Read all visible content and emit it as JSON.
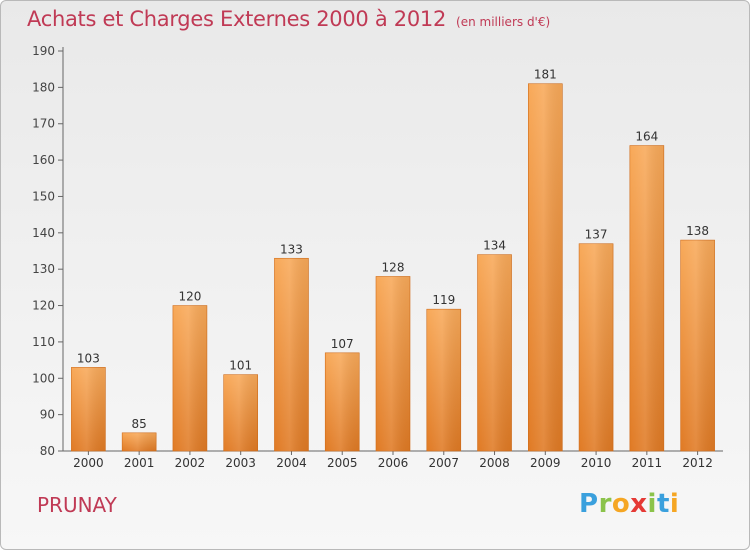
{
  "header": {
    "title": "Achats et Charges Externes 2000 à 2012",
    "unit": "(en milliers d'€)"
  },
  "footer": {
    "city": "PRUNAY"
  },
  "logo": {
    "letters": [
      "P",
      "r",
      "o",
      "x",
      "i",
      "t",
      "i"
    ],
    "colors": [
      "#3aa0dd",
      "#8bc34a",
      "#f5a623",
      "#e53935",
      "#8bc34a",
      "#3aa0dd",
      "#f5a623"
    ]
  },
  "colors": {
    "bar_light": "#f8a959",
    "bar_dark": "#e07a24",
    "text_accent": "#c03a55"
  },
  "chart_data": {
    "type": "bar",
    "title": "Achats et Charges Externes 2000 à 2012",
    "categories": [
      "2000",
      "2001",
      "2002",
      "2003",
      "2004",
      "2005",
      "2006",
      "2007",
      "2008",
      "2009",
      "2010",
      "2011",
      "2012"
    ],
    "values": [
      103,
      85,
      120,
      101,
      133,
      107,
      128,
      119,
      134,
      181,
      137,
      164,
      138
    ],
    "yticks": [
      80,
      90,
      100,
      110,
      120,
      130,
      140,
      150,
      160,
      170,
      180,
      190
    ],
    "ylim": [
      80,
      190
    ],
    "grid": false,
    "xlabel": "",
    "ylabel": ""
  }
}
